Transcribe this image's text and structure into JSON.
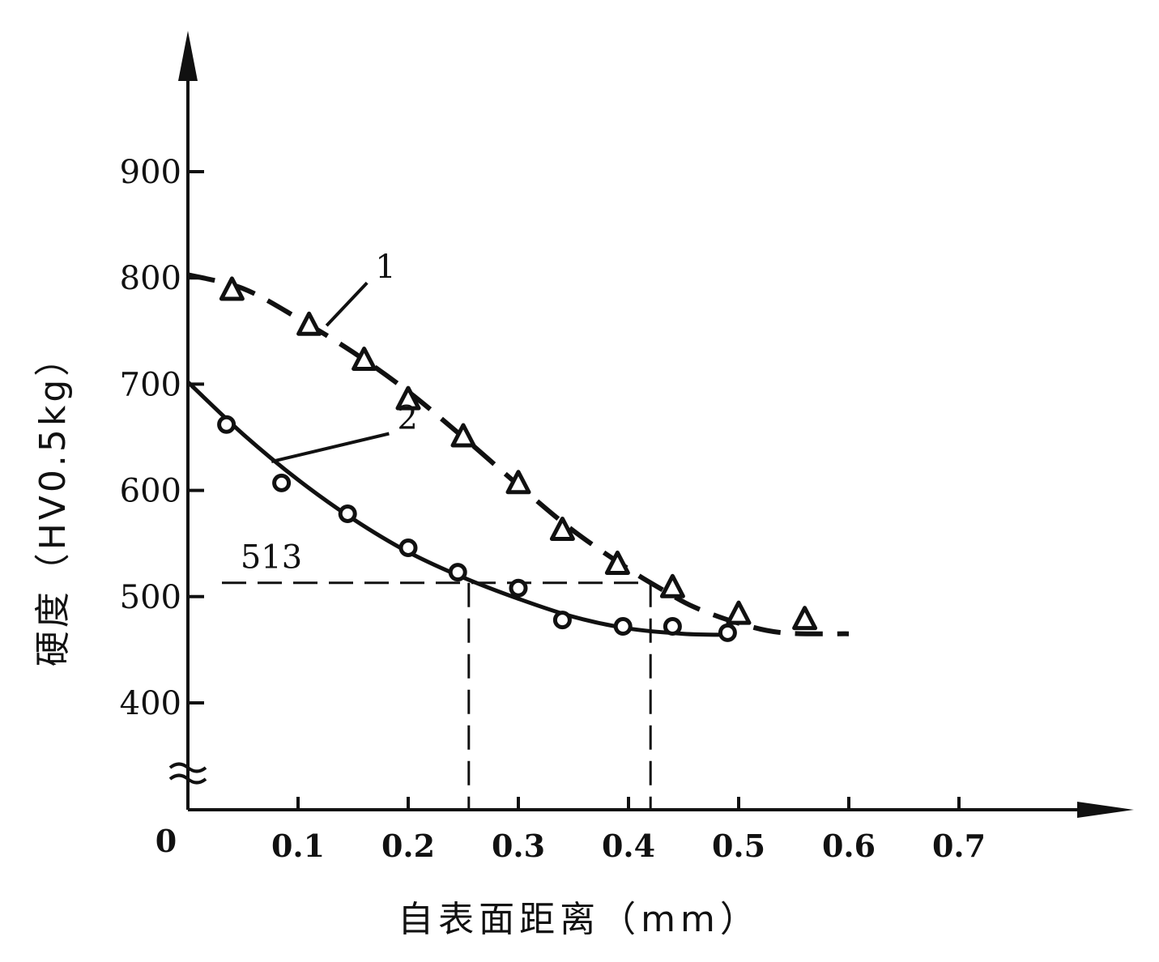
{
  "chart_data": {
    "type": "line",
    "title": "",
    "xlabel": "自表面距离（mm）",
    "ylabel": "硬度（HV0.5kg）",
    "origin_label": "0",
    "x_ticks": [
      {
        "value": 0.1,
        "label": "0.1"
      },
      {
        "value": 0.2,
        "label": "0.2"
      },
      {
        "value": 0.3,
        "label": "0.3"
      },
      {
        "value": 0.4,
        "label": "0.4"
      },
      {
        "value": 0.5,
        "label": "0.5"
      },
      {
        "value": 0.6,
        "label": "0.6"
      },
      {
        "value": 0.7,
        "label": "0.7"
      }
    ],
    "y_ticks": [
      {
        "value": 400,
        "label": "400"
      },
      {
        "value": 500,
        "label": "500"
      },
      {
        "value": 600,
        "label": "600"
      },
      {
        "value": 700,
        "label": "700"
      },
      {
        "value": 800,
        "label": "800"
      },
      {
        "value": 900,
        "label": "900"
      }
    ],
    "xlim": [
      0,
      0.8
    ],
    "ylim": [
      400,
      950
    ],
    "y_axis_break": true,
    "grid": false,
    "series": [
      {
        "name": "1",
        "style": "dashed",
        "marker": "triangle",
        "curve": [
          [
            0,
            803
          ],
          [
            0.05,
            790
          ],
          [
            0.1,
            762
          ],
          [
            0.15,
            730
          ],
          [
            0.2,
            693
          ],
          [
            0.25,
            650
          ],
          [
            0.3,
            605
          ],
          [
            0.35,
            562
          ],
          [
            0.4,
            526
          ],
          [
            0.43,
            507
          ],
          [
            0.46,
            490
          ],
          [
            0.5,
            475
          ],
          [
            0.54,
            466
          ],
          [
            0.6,
            465
          ]
        ],
        "points": [
          [
            0.04,
            788
          ],
          [
            0.11,
            755
          ],
          [
            0.16,
            722
          ],
          [
            0.2,
            685
          ],
          [
            0.25,
            650
          ],
          [
            0.3,
            606
          ],
          [
            0.34,
            562
          ],
          [
            0.39,
            530
          ],
          [
            0.44,
            508
          ],
          [
            0.5,
            483
          ],
          [
            0.56,
            478
          ]
        ]
      },
      {
        "name": "2",
        "style": "solid",
        "marker": "circle",
        "curve": [
          [
            0,
            702
          ],
          [
            0.05,
            653
          ],
          [
            0.1,
            610
          ],
          [
            0.15,
            573
          ],
          [
            0.2,
            542
          ],
          [
            0.25,
            518
          ],
          [
            0.3,
            498
          ],
          [
            0.35,
            481
          ],
          [
            0.4,
            470
          ],
          [
            0.45,
            465
          ],
          [
            0.49,
            464
          ]
        ],
        "points": [
          [
            0.035,
            662
          ],
          [
            0.085,
            607
          ],
          [
            0.145,
            578
          ],
          [
            0.2,
            546
          ],
          [
            0.245,
            523
          ],
          [
            0.3,
            508
          ],
          [
            0.34,
            478
          ],
          [
            0.395,
            472
          ],
          [
            0.44,
            472
          ],
          [
            0.49,
            466
          ]
        ]
      }
    ],
    "annotations": [
      {
        "text": "1",
        "target_series": "1",
        "label_at": [
          0.17,
          800
        ],
        "arrow_to": [
          0.12,
          752
        ]
      },
      {
        "text": "2",
        "target_series": "2",
        "label_at": [
          0.19,
          658
        ],
        "arrow_to": [
          0.07,
          624
        ]
      }
    ],
    "reference": {
      "y": 513,
      "label": "513",
      "x_intersections": [
        0.255,
        0.42
      ]
    }
  }
}
